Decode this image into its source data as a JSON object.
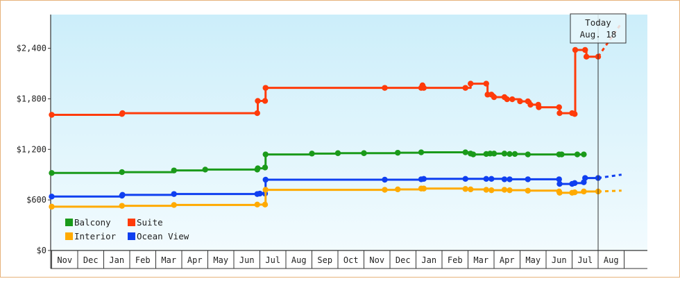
{
  "chart_data": {
    "type": "line",
    "step": true,
    "y_axis": {
      "min": 0,
      "max": 2800,
      "ticks": [
        {
          "value": 0,
          "label": "$0"
        },
        {
          "value": 600,
          "label": "$600"
        },
        {
          "value": 1200,
          "label": "$1,200"
        },
        {
          "value": 1800,
          "label": "$1,800"
        },
        {
          "value": 2400,
          "label": "$2,400"
        }
      ]
    },
    "x_axis": {
      "months": [
        "Nov",
        "Dec",
        "Jan",
        "Feb",
        "Mar",
        "Apr",
        "May",
        "Jun",
        "Jul",
        "Aug",
        "Sep",
        "Oct",
        "Nov",
        "Dec",
        "Jan",
        "Feb",
        "Mar",
        "Apr",
        "May",
        "Jun",
        "Jul",
        "Aug"
      ],
      "range": [
        0,
        22.2
      ]
    },
    "today": {
      "x": 21.0,
      "label_line1": "Today",
      "label_line2": "Aug. 18"
    },
    "series": [
      {
        "name": "Suite",
        "color": "#ff3b0a",
        "points": [
          [
            0,
            1610
          ],
          [
            2.7,
            1620
          ],
          [
            2.72,
            1630
          ],
          [
            7.9,
            1630
          ],
          [
            7.92,
            1775
          ],
          [
            8.2,
            1775
          ],
          [
            8.22,
            1930
          ],
          [
            12.8,
            1930
          ],
          [
            14.2,
            1930
          ],
          [
            14.25,
            1960
          ],
          [
            14.3,
            1930
          ],
          [
            15.9,
            1930
          ],
          [
            16.1,
            1980
          ],
          [
            16.7,
            1980
          ],
          [
            16.75,
            1850
          ],
          [
            16.9,
            1850
          ],
          [
            17.0,
            1820
          ],
          [
            17.4,
            1820
          ],
          [
            17.5,
            1795
          ],
          [
            17.7,
            1795
          ],
          [
            18.0,
            1770
          ],
          [
            18.3,
            1770
          ],
          [
            18.4,
            1730
          ],
          [
            18.7,
            1730
          ],
          [
            18.72,
            1700
          ],
          [
            19.5,
            1700
          ],
          [
            19.52,
            1630
          ],
          [
            20.0,
            1630
          ],
          [
            20.1,
            1620
          ],
          [
            20.12,
            2380
          ],
          [
            20.5,
            2380
          ],
          [
            20.55,
            2300
          ],
          [
            21.0,
            2300
          ]
        ],
        "forecast": [
          [
            21.0,
            2300
          ],
          [
            21.9,
            2700
          ]
        ]
      },
      {
        "name": "Balcony",
        "color": "#1a9a1a",
        "points": [
          [
            0,
            920
          ],
          [
            2.7,
            930
          ],
          [
            4.7,
            950
          ],
          [
            5.9,
            960
          ],
          [
            7.9,
            960
          ],
          [
            7.92,
            975
          ],
          [
            8.2,
            985
          ],
          [
            8.22,
            1140
          ],
          [
            10.0,
            1150
          ],
          [
            11.0,
            1155
          ],
          [
            12.0,
            1155
          ],
          [
            13.3,
            1160
          ],
          [
            14.2,
            1165
          ],
          [
            15.9,
            1165
          ],
          [
            16.1,
            1150
          ],
          [
            16.2,
            1140
          ],
          [
            16.7,
            1145
          ],
          [
            16.85,
            1150
          ],
          [
            17.0,
            1150
          ],
          [
            17.4,
            1150
          ],
          [
            17.6,
            1145
          ],
          [
            17.8,
            1145
          ],
          [
            18.3,
            1140
          ],
          [
            19.5,
            1140
          ],
          [
            19.6,
            1140
          ],
          [
            20.2,
            1140
          ],
          [
            20.45,
            1140
          ]
        ],
        "forecast": []
      },
      {
        "name": "Ocean View",
        "color": "#0f3ff0",
        "points": [
          [
            0,
            640
          ],
          [
            2.7,
            650
          ],
          [
            2.72,
            660
          ],
          [
            4.7,
            670
          ],
          [
            7.9,
            670
          ],
          [
            8.0,
            675
          ],
          [
            8.2,
            675
          ],
          [
            8.22,
            840
          ],
          [
            12.8,
            840
          ],
          [
            14.2,
            845
          ],
          [
            14.3,
            850
          ],
          [
            15.9,
            850
          ],
          [
            16.7,
            850
          ],
          [
            16.9,
            850
          ],
          [
            17.4,
            845
          ],
          [
            17.6,
            845
          ],
          [
            18.3,
            845
          ],
          [
            19.5,
            845
          ],
          [
            19.52,
            790
          ],
          [
            20.0,
            790
          ],
          [
            20.1,
            800
          ],
          [
            20.45,
            810
          ],
          [
            20.5,
            860
          ],
          [
            21.0,
            860
          ]
        ],
        "forecast": [
          [
            21.0,
            860
          ],
          [
            21.9,
            900
          ]
        ]
      },
      {
        "name": "Interior",
        "color": "#ffaa00",
        "points": [
          [
            0,
            520
          ],
          [
            2.7,
            530
          ],
          [
            4.7,
            540
          ],
          [
            7.9,
            545
          ],
          [
            8.2,
            545
          ],
          [
            8.22,
            720
          ],
          [
            12.8,
            720
          ],
          [
            13.3,
            725
          ],
          [
            14.2,
            735
          ],
          [
            14.3,
            735
          ],
          [
            15.9,
            730
          ],
          [
            16.1,
            725
          ],
          [
            16.7,
            720
          ],
          [
            16.9,
            715
          ],
          [
            17.4,
            720
          ],
          [
            17.6,
            715
          ],
          [
            18.3,
            710
          ],
          [
            19.5,
            700
          ],
          [
            19.52,
            685
          ],
          [
            20.0,
            685
          ],
          [
            20.1,
            690
          ],
          [
            20.45,
            700
          ],
          [
            21.0,
            700
          ]
        ],
        "forecast": [
          [
            21.0,
            700
          ],
          [
            21.9,
            710
          ]
        ]
      }
    ],
    "legend": {
      "position": "bottom-left",
      "items": [
        {
          "name": "Balcony",
          "color": "#1a9a1a"
        },
        {
          "name": "Suite",
          "color": "#ff3b0a"
        },
        {
          "name": "Interior",
          "color": "#ffaa00"
        },
        {
          "name": "Ocean View",
          "color": "#0f3ff0"
        }
      ]
    }
  }
}
